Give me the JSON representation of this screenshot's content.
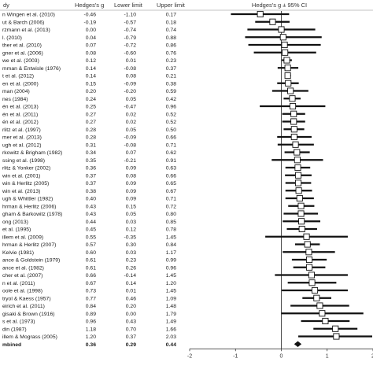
{
  "headers": {
    "study": "dy",
    "g": "Hedges's g",
    "lower": "Lower limit",
    "upper": "Upper limit",
    "plot": "Hedges's g ± 95% CI"
  },
  "chart_data": {
    "type": "forest",
    "xlim": [
      -2,
      2
    ],
    "xticks": [
      -2,
      -1,
      0,
      1,
      2
    ],
    "rows": [
      {
        "study": "n Wingen et al. (2010)",
        "g": -0.46,
        "lower": -1.1,
        "upper": 0.17
      },
      {
        "study": "ut & Barch (2006)",
        "g": -0.19,
        "lower": -0.57,
        "upper": 0.18
      },
      {
        "study": "rzmann et al. (2013)",
        "g": 0.0,
        "lower": -0.74,
        "upper": 0.74
      },
      {
        "study": "l. (2010)",
        "g": 0.04,
        "lower": -0.79,
        "upper": 0.88
      },
      {
        "study": "ther et al. (2010)",
        "g": 0.07,
        "lower": -0.72,
        "upper": 0.86
      },
      {
        "study": "gner et al. (2006)",
        "g": 0.08,
        "lower": -0.6,
        "upper": 0.76
      },
      {
        "study": "we et al. (2003)",
        "g": 0.12,
        "lower": 0.01,
        "upper": 0.23
      },
      {
        "study": "mman & Entwisle (1976)",
        "g": 0.14,
        "lower": -0.08,
        "upper": 0.37
      },
      {
        "study": "t et al. (2012)",
        "g": 0.14,
        "lower": 0.08,
        "upper": 0.21
      },
      {
        "study": "en et al. (2000)",
        "g": 0.15,
        "lower": -0.09,
        "upper": 0.38
      },
      {
        "study": "man (2004)",
        "g": 0.2,
        "lower": -0.2,
        "upper": 0.59
      },
      {
        "study": "nes (1984)",
        "g": 0.24,
        "lower": 0.05,
        "upper": 0.42
      },
      {
        "study": "én et al. (2013)",
        "g": 0.25,
        "lower": -0.47,
        "upper": 0.96
      },
      {
        "study": "én et al. (2011)",
        "g": 0.27,
        "lower": 0.02,
        "upper": 0.52
      },
      {
        "study": "én et al. (2012)",
        "g": 0.27,
        "lower": 0.02,
        "upper": 0.52
      },
      {
        "study": "rlitz et al. (1997)",
        "g": 0.28,
        "lower": 0.05,
        "upper": 0.5
      },
      {
        "study": "mer et al. (2013)",
        "g": 0.28,
        "lower": -0.09,
        "upper": 0.66
      },
      {
        "study": "ugh et al. (2012)",
        "g": 0.31,
        "lower": -0.08,
        "upper": 0.71
      },
      {
        "study": "rkowitz & Brigham (1982)",
        "g": 0.34,
        "lower": 0.07,
        "upper": 0.62
      },
      {
        "study": "ssing et al. (1998)",
        "g": 0.35,
        "lower": -0.21,
        "upper": 0.91
      },
      {
        "study": "rlitz & Yonker (2002)",
        "g": 0.36,
        "lower": 0.09,
        "upper": 0.63
      },
      {
        "study": "win et al. (2001)",
        "g": 0.37,
        "lower": 0.08,
        "upper": 0.66
      },
      {
        "study": "win & Herlitz (2005)",
        "g": 0.37,
        "lower": 0.09,
        "upper": 0.65
      },
      {
        "study": "win et al. (2013)",
        "g": 0.38,
        "lower": 0.09,
        "upper": 0.67
      },
      {
        "study": "ugh & Whittler (1982)",
        "g": 0.4,
        "lower": 0.09,
        "upper": 0.71
      },
      {
        "study": "hrman & Herlitz (2006)",
        "g": 0.43,
        "lower": 0.15,
        "upper": 0.72
      },
      {
        "study": "gham & Barkowitz (1978)",
        "g": 0.43,
        "lower": 0.05,
        "upper": 0.8
      },
      {
        "study": "ong (2013)",
        "g": 0.44,
        "lower": 0.03,
        "upper": 0.85
      },
      {
        "study": "et al. (1995)",
        "g": 0.45,
        "lower": 0.12,
        "upper": 0.78
      },
      {
        "study": "illem et al. (2009)",
        "g": 0.55,
        "lower": -0.35,
        "upper": 1.45
      },
      {
        "study": "hrman & Herlitz (2007)",
        "g": 0.57,
        "lower": 0.3,
        "upper": 0.84
      },
      {
        "study": "Kelvie (1981)",
        "g": 0.6,
        "lower": 0.03,
        "upper": 1.17
      },
      {
        "study": "ance & Goldstein (1979)",
        "g": 0.61,
        "lower": 0.23,
        "upper": 0.99
      },
      {
        "study": "ance et al. (1982)",
        "g": 0.61,
        "lower": 0.26,
        "upper": 0.96
      },
      {
        "study": "cher et al. (2007)",
        "g": 0.66,
        "lower": -0.14,
        "upper": 1.45
      },
      {
        "study": "n et al. (2011)",
        "g": 0.67,
        "lower": 0.14,
        "upper": 1.2
      },
      {
        "study": "oole et al. (1998)",
        "g": 0.73,
        "lower": 0.01,
        "upper": 1.45
      },
      {
        "study": "tryol & Kaess (1957)",
        "g": 0.77,
        "lower": 0.46,
        "upper": 1.09
      },
      {
        "study": "eirich et al. (2011)",
        "g": 0.84,
        "lower": 0.2,
        "upper": 1.48
      },
      {
        "study": "gisaki & Brown (1916)",
        "g": 0.89,
        "lower": 0.0,
        "upper": 1.79
      },
      {
        "study": "s et al. (1973)",
        "g": 0.96,
        "lower": 0.43,
        "upper": 1.49
      },
      {
        "study": "din (1987)",
        "g": 1.18,
        "lower": 0.7,
        "upper": 1.66
      },
      {
        "study": "illem & Mograss (2005)",
        "g": 1.2,
        "lower": 0.37,
        "upper": 2.03
      }
    ],
    "combined": {
      "study": "mbined",
      "g": 0.36,
      "lower": 0.29,
      "upper": 0.44
    }
  }
}
